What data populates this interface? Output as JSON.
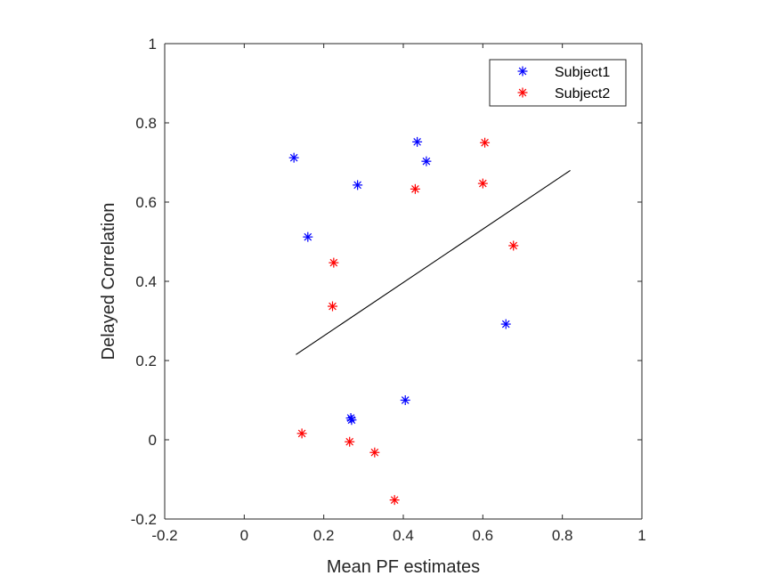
{
  "chart_data": {
    "type": "scatter",
    "xlabel": "Mean PF estimates",
    "ylabel": "Delayed Correlation",
    "xlim": [
      -0.2,
      1
    ],
    "ylim": [
      -0.2,
      1
    ],
    "xticks": [
      "-0.2",
      "0",
      "0.2",
      "0.4",
      "0.6",
      "0.8",
      "1"
    ],
    "yticks": [
      "-0.2",
      "0",
      "0.2",
      "0.4",
      "0.6",
      "0.8",
      "1"
    ],
    "grid": false,
    "legend_position": "top-right",
    "marker": "asterisk",
    "series": [
      {
        "name": "Subject1",
        "color": "#0000ff",
        "points": [
          [
            0.125,
            0.712
          ],
          [
            0.16,
            0.512
          ],
          [
            0.285,
            0.643
          ],
          [
            0.435,
            0.752
          ],
          [
            0.458,
            0.703
          ],
          [
            0.405,
            0.1
          ],
          [
            0.268,
            0.055
          ],
          [
            0.27,
            0.05
          ],
          [
            0.658,
            0.292
          ]
        ]
      },
      {
        "name": "Subject2",
        "color": "#ff0000",
        "points": [
          [
            0.605,
            0.75
          ],
          [
            0.6,
            0.647
          ],
          [
            0.43,
            0.633
          ],
          [
            0.677,
            0.49
          ],
          [
            0.225,
            0.447
          ],
          [
            0.222,
            0.337
          ],
          [
            0.145,
            0.016
          ],
          [
            0.265,
            -0.005
          ],
          [
            0.328,
            -0.032
          ],
          [
            0.378,
            -0.152
          ]
        ]
      }
    ],
    "fit_line": {
      "color": "#000000",
      "x": [
        0.13,
        0.82
      ],
      "y": [
        0.215,
        0.68
      ]
    }
  }
}
